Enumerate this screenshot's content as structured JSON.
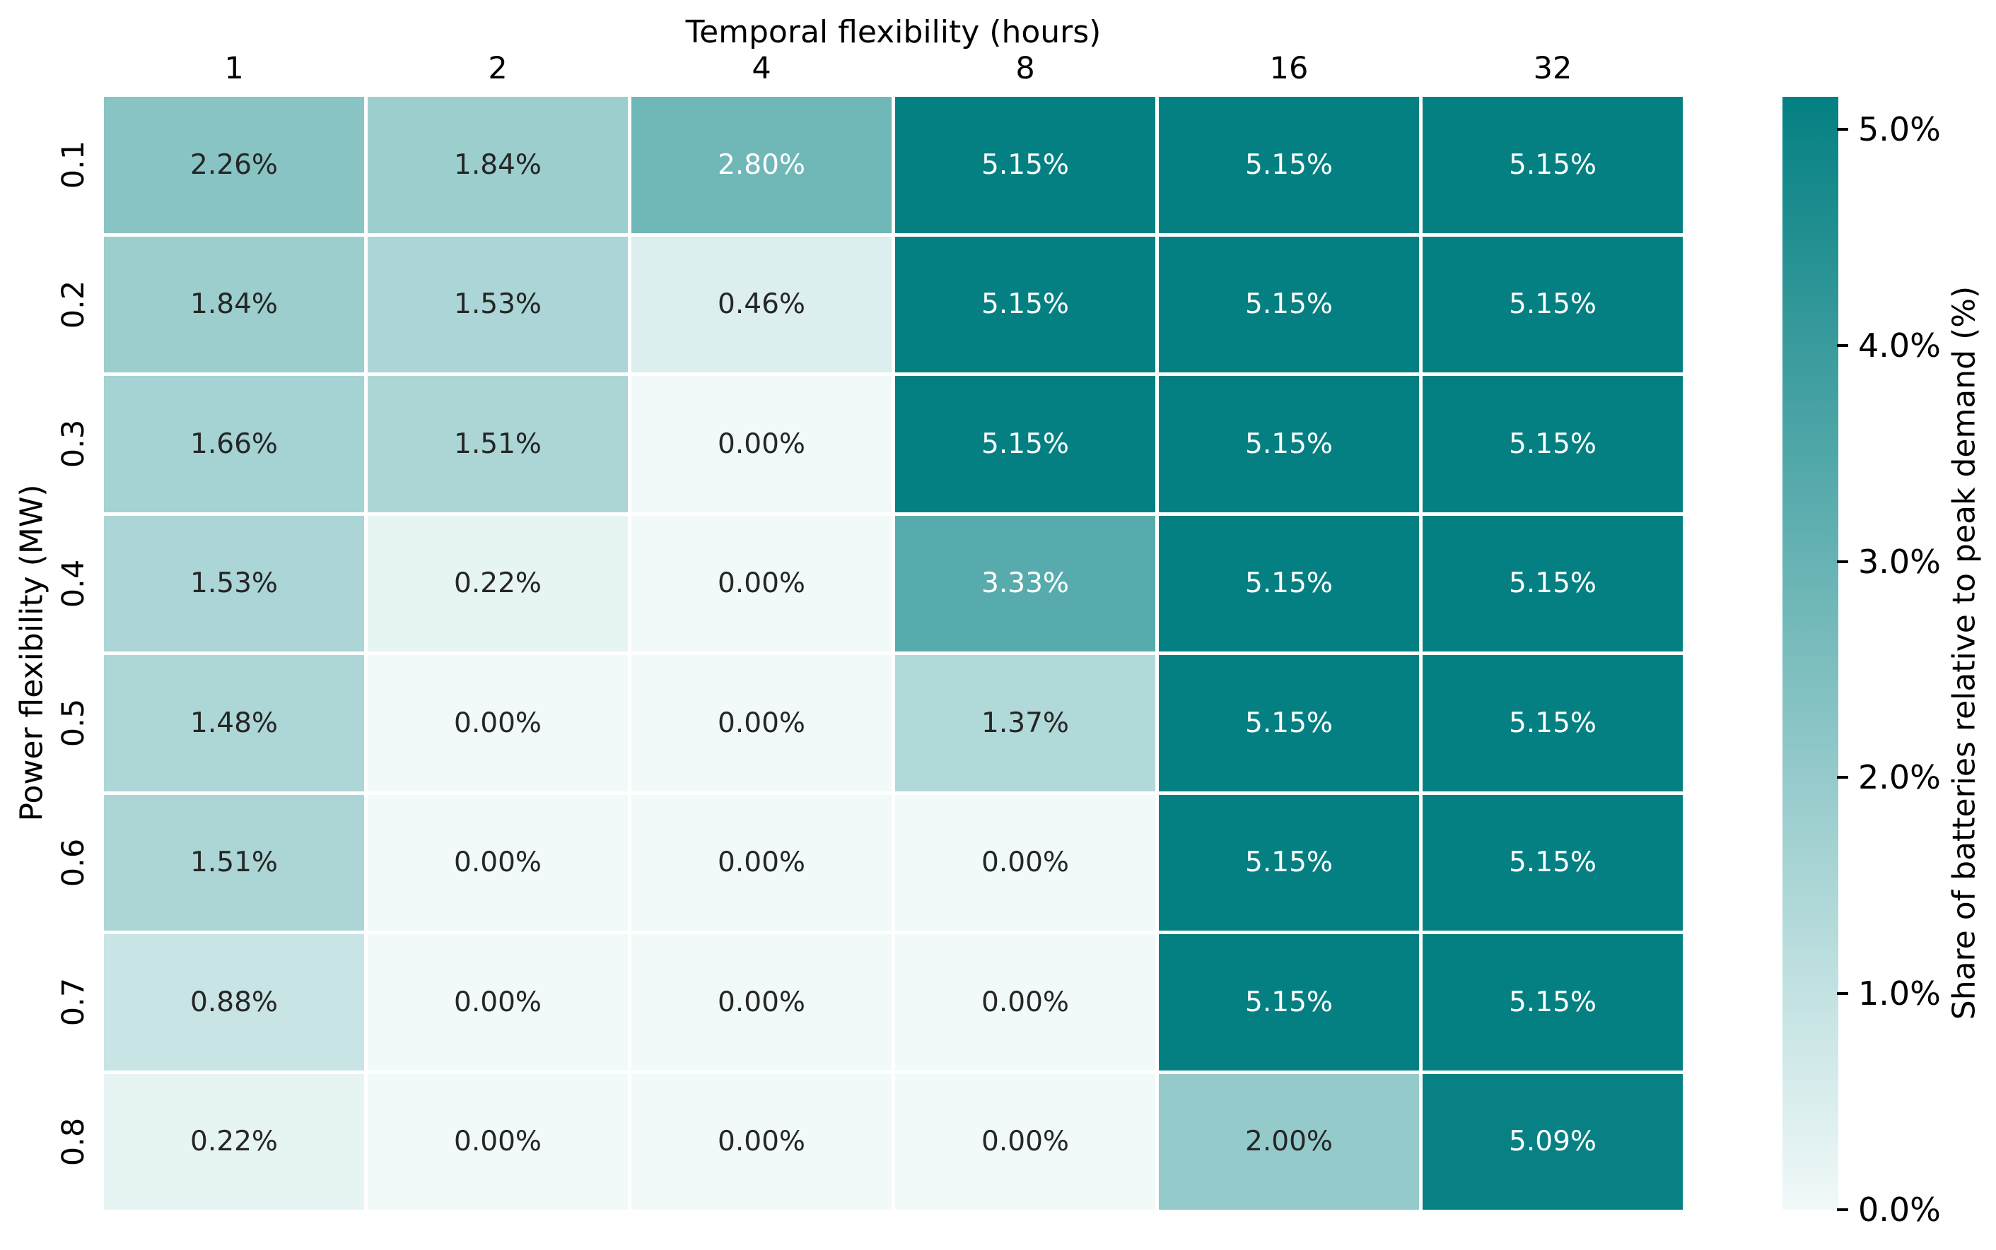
{
  "chart_data": {
    "type": "heatmap",
    "title": "Temporal flexibility (hours)",
    "xlabel": "Temporal flexibility (hours)",
    "ylabel": "Power flexibility (MW)",
    "x_labels": [
      "1",
      "2",
      "4",
      "8",
      "16",
      "32"
    ],
    "y_labels": [
      "0.1",
      "0.2",
      "0.3",
      "0.4",
      "0.5",
      "0.6",
      "0.7",
      "0.8"
    ],
    "values": [
      [
        2.26,
        1.84,
        2.8,
        5.15,
        5.15,
        5.15
      ],
      [
        1.84,
        1.53,
        0.46,
        5.15,
        5.15,
        5.15
      ],
      [
        1.66,
        1.51,
        0.0,
        5.15,
        5.15,
        5.15
      ],
      [
        1.53,
        0.22,
        0.0,
        3.33,
        5.15,
        5.15
      ],
      [
        1.48,
        0.0,
        0.0,
        1.37,
        5.15,
        5.15
      ],
      [
        1.51,
        0.0,
        0.0,
        0.0,
        5.15,
        5.15
      ],
      [
        0.88,
        0.0,
        0.0,
        0.0,
        5.15,
        5.15
      ],
      [
        0.22,
        0.0,
        0.0,
        0.0,
        2.0,
        5.09
      ]
    ],
    "annotations": [
      [
        "2.26%",
        "1.84%",
        "2.80%",
        "5.15%",
        "5.15%",
        "5.15%"
      ],
      [
        "1.84%",
        "1.53%",
        "0.46%",
        "5.15%",
        "5.15%",
        "5.15%"
      ],
      [
        "1.66%",
        "1.51%",
        "0.00%",
        "5.15%",
        "5.15%",
        "5.15%"
      ],
      [
        "1.53%",
        "0.22%",
        "0.00%",
        "3.33%",
        "5.15%",
        "5.15%"
      ],
      [
        "1.48%",
        "0.00%",
        "0.00%",
        "1.37%",
        "5.15%",
        "5.15%"
      ],
      [
        "1.51%",
        "0.00%",
        "0.00%",
        "0.00%",
        "5.15%",
        "5.15%"
      ],
      [
        "0.88%",
        "0.00%",
        "0.00%",
        "0.00%",
        "5.15%",
        "5.15%"
      ],
      [
        "0.22%",
        "0.00%",
        "0.00%",
        "0.00%",
        "2.00%",
        "5.09%"
      ]
    ],
    "grid": false,
    "legend_position": "right-colorbar",
    "colorbar": {
      "label": "Share of batteries relative to peak demand (%)",
      "ticks": [
        "5.0%",
        "4.0%",
        "3.0%",
        "2.0%",
        "1.0%",
        "0.0%"
      ],
      "tick_values": [
        5.0,
        4.0,
        3.0,
        2.0,
        1.0,
        0.0
      ],
      "vmin": 0.0,
      "vmax": 5.15,
      "min_color": "#f1f9f9",
      "max_color": "#048082"
    },
    "annotation_text_colors": {
      "on_dark": "#ffffff",
      "on_light": "#262626"
    }
  }
}
